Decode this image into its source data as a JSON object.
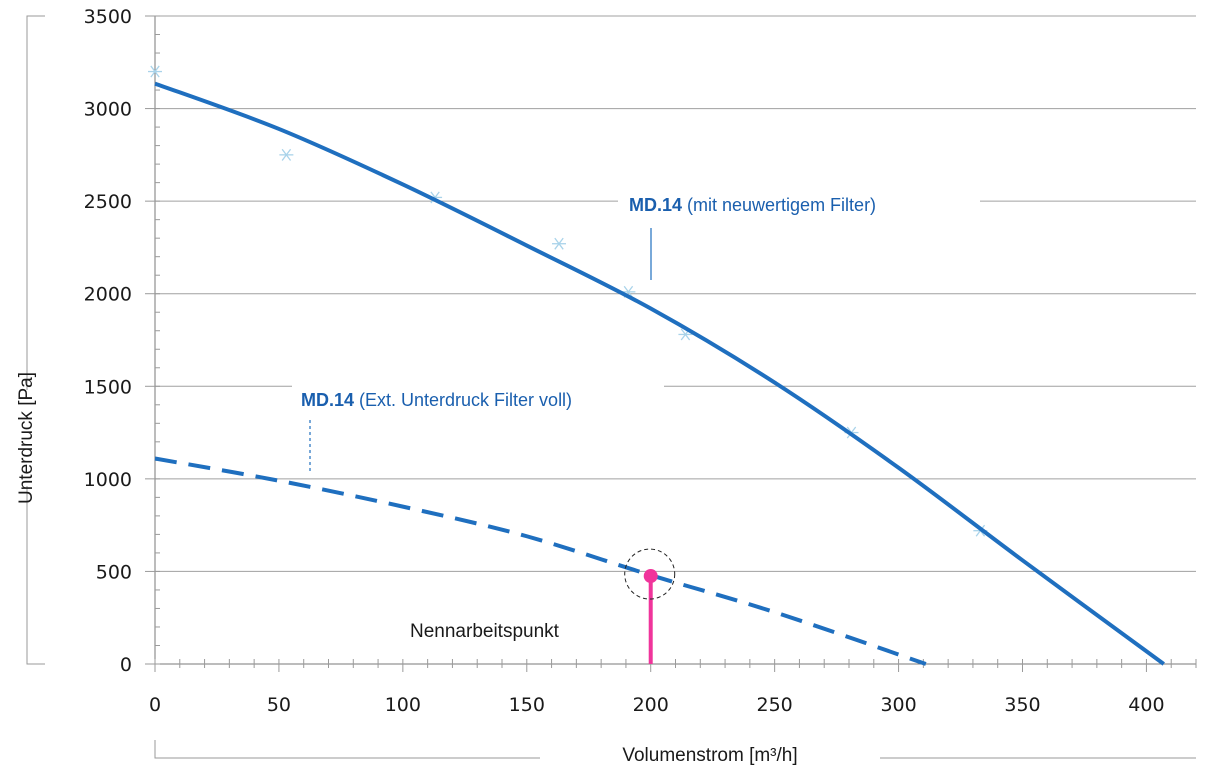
{
  "chart_data": {
    "type": "line",
    "xlabel": "Volumenstrom [m³/h]",
    "ylabel": "Unterdruck [Pa]",
    "xlim": [
      0,
      420
    ],
    "ylim": [
      0,
      3500
    ],
    "x_ticks": [
      0,
      50,
      100,
      150,
      200,
      250,
      300,
      350,
      400
    ],
    "y_ticks": [
      0,
      500,
      1000,
      1500,
      2000,
      2500,
      3000,
      3500
    ],
    "grid": "horizontal",
    "series": [
      {
        "name_bold": "MD.14",
        "name_rest": " (mit neuwertigem Filter)",
        "style": "solid",
        "color": "#1f6fbf",
        "x": [
          0,
          50,
          100,
          150,
          200,
          250,
          300,
          350,
          407
        ],
        "y": [
          3135,
          2890,
          2590,
          2260,
          1920,
          1520,
          1060,
          560,
          0
        ]
      },
      {
        "name_bold": "MD.14",
        "name_rest": " (Ext. Unterdruck Filter voll)",
        "style": "dashed",
        "color": "#1f6fbf",
        "x": [
          0,
          50,
          100,
          150,
          200,
          250,
          311
        ],
        "y": [
          1110,
          990,
          850,
          690,
          480,
          280,
          0
        ]
      }
    ],
    "measured_points": {
      "color": "#a9d3ea",
      "x": [
        0,
        53,
        113,
        163,
        191,
        214,
        281,
        333
      ],
      "y": [
        3200,
        2750,
        2520,
        2270,
        2010,
        1780,
        1250,
        720
      ]
    },
    "operating_point": {
      "label": "Nennarbeitspunkt",
      "x": 200,
      "y": 475,
      "color": "#f0349b"
    }
  }
}
